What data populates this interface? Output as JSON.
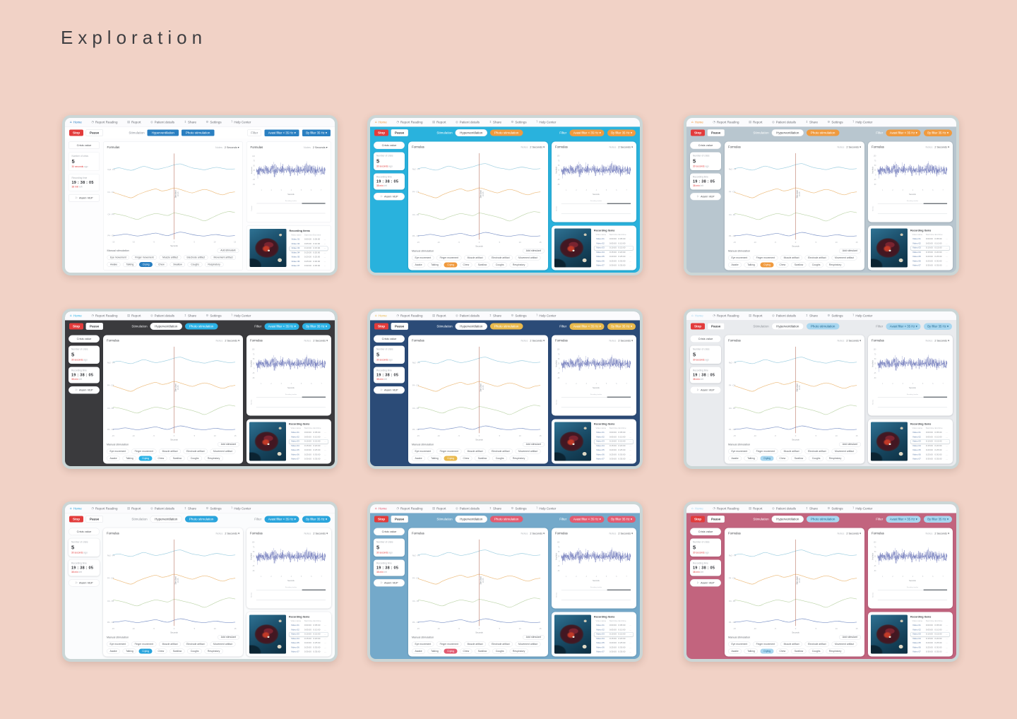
{
  "page": {
    "title": "Exploration",
    "background": "#f1d2c6"
  },
  "dashboard": {
    "navbar": {
      "items": [
        {
          "label": "Home",
          "icon": "home-icon",
          "glyph": "⌂"
        },
        {
          "label": "Report Reading",
          "icon": "report-reading-icon",
          "glyph": "◔"
        },
        {
          "label": "Report",
          "icon": "report-icon",
          "glyph": "▤"
        },
        {
          "label": "Patient details",
          "icon": "patient-icon",
          "glyph": "◎"
        },
        {
          "label": "Share",
          "icon": "share-icon",
          "glyph": "↥"
        },
        {
          "label": "Settings",
          "icon": "settings-icon",
          "glyph": "⚙"
        },
        {
          "label": "Help Center",
          "icon": "help-icon",
          "glyph": "?"
        }
      ]
    },
    "controls": {
      "stop": "Stop",
      "pause": "Pause",
      "stimulation_label": "Stimulation",
      "tabs": [
        "Hyperventilation",
        "Photo stimulation"
      ],
      "filter_label": "Filter",
      "filters": [
        {
          "label": "Avast filter < 35 Hz"
        },
        {
          "label": "By filter 35 Hz"
        }
      ],
      "caret": "▾"
    },
    "sidebar": {
      "crisis_button": "Crisis value",
      "crisis": {
        "label": "Number of crisis",
        "value": "5",
        "highlight": "30 seconds",
        "suffix": "ago"
      },
      "timer": {
        "label": "Recording time",
        "value": "19 : 38 : 05",
        "highlight": "38 min",
        "suffix": "left"
      },
      "alarm": {
        "label": "Alarm VEP",
        "glyph": "⚐"
      }
    },
    "main_chart": {
      "title": "Formulas",
      "notes_label": "Notes",
      "notes_value": "2 Seconds",
      "xlabel": "Seconds",
      "marker_label": "Stimulant",
      "marker_time": "19:35"
    },
    "manual": {
      "title": "Manual stimulation",
      "add_button": "Add stimulant",
      "row1": [
        "Eye movement",
        "Finger movement",
        "Muscle artifact",
        "Electrode artifact",
        "Movement artifact"
      ],
      "row2": [
        {
          "label": "Awake",
          "active": false
        },
        {
          "label": "Talking",
          "active": false
        },
        {
          "label": "Crying",
          "active": true
        },
        {
          "label": "Chew",
          "active": false
        },
        {
          "label": "Swallow",
          "active": false
        },
        {
          "label": "Coughs",
          "active": false
        },
        {
          "label": "Respiratory",
          "active": false
        }
      ]
    },
    "eeg_panel": {
      "title": "Formulas",
      "notes_label": "Notes",
      "notes_value": "2 Seconds",
      "ylabel": "Amplitude",
      "xlabel": "Seconds",
      "timeline_label": "Recording timeline",
      "scroll_label": "Timeline"
    },
    "recording": {
      "title": "Recording items",
      "headers": [
        "Video name",
        "Start time",
        "End time",
        ""
      ],
      "menu_glyph": "…",
      "selected_index": 2,
      "rows": [
        {
          "name": "Video 01",
          "start": "0:00:00",
          "end": "0:05:00"
        },
        {
          "name": "Video 02",
          "start": "0:05:00",
          "end": "0:10:00"
        },
        {
          "name": "Video 03",
          "start": "0:10:00",
          "end": "0:15:00"
        },
        {
          "name": "Video 04",
          "start": "0:15:00",
          "end": "0:20:00"
        },
        {
          "name": "Video 05",
          "start": "0:20:00",
          "end": "0:25:00"
        },
        {
          "name": "Video 06",
          "start": "0:25:00",
          "end": "0:30:00"
        },
        {
          "name": "Video 07",
          "start": "0:30:00",
          "end": "0:35:00"
        }
      ]
    }
  },
  "themes": [
    {
      "name": "light-flat",
      "flat": true,
      "bg": "#fdfdfe",
      "accent": "#2a7fc1",
      "accentText": "#ffffff",
      "barText": "#8a8f98"
    },
    {
      "name": "cyan",
      "flat": false,
      "bg": "#29b2dd",
      "accent": "#f09a3e",
      "accentText": "#ffffff",
      "barText": "#ffffff"
    },
    {
      "name": "slate-mist",
      "flat": false,
      "bg": "#b8c6cf",
      "accent": "#f09a3e",
      "accentText": "#ffffff",
      "barText": "#ffffff"
    },
    {
      "name": "charcoal",
      "flat": false,
      "bg": "#3a3a3d",
      "accent": "#2bb2e6",
      "accentText": "#ffffff",
      "barText": "#e8e8ea"
    },
    {
      "name": "navy",
      "flat": false,
      "bg": "#2b4b77",
      "accent": "#e9b94d",
      "accentText": "#ffffff",
      "barText": "#ffffff"
    },
    {
      "name": "porcelain",
      "flat": false,
      "bg": "#e9ebee",
      "accent": "#a9d7f0",
      "accentText": "#246a92",
      "barText": "#90949b"
    },
    {
      "name": "white-cyan",
      "flat": false,
      "bg": "#fbfcfd",
      "accent": "#29a4dc",
      "accentText": "#ffffff",
      "barText": "#90949b"
    },
    {
      "name": "steel-blue",
      "flat": false,
      "bg": "#74a9ca",
      "accent": "#e25a70",
      "accentText": "#ffffff",
      "barText": "#ffffff"
    },
    {
      "name": "rose",
      "flat": false,
      "bg": "#c2647e",
      "accent": "#a9d7f0",
      "accentText": "#246a92",
      "barText": "#ffffff"
    }
  ],
  "chart_data": [
    {
      "type": "line",
      "title": "Formulas",
      "xlabel": "Seconds",
      "x_ticks": [
        -15,
        -10,
        -5,
        0,
        5,
        10,
        15
      ],
      "marker": {
        "x": 0,
        "label": "Stimulant",
        "time": "19:35"
      },
      "series": [
        {
          "name": "Fp2 - F4",
          "color": "#8ec6dc",
          "offsets": [
            1,
            3,
            0,
            -2,
            2,
            6,
            3,
            0,
            2,
            5,
            9,
            11,
            7,
            3,
            1,
            -1,
            2,
            4,
            2,
            0,
            1
          ]
        },
        {
          "name": "F4 - C4",
          "color": "#eab066",
          "offsets": [
            -1,
            -5,
            -9,
            -12,
            -6,
            -1,
            3,
            6,
            2,
            4,
            8,
            5,
            1,
            -2,
            2,
            5,
            2,
            -3,
            -6,
            -2,
            0
          ]
        },
        {
          "name": "C4 - P4",
          "color": "#b5cf9e",
          "offsets": [
            2,
            0,
            -3,
            -7,
            -10,
            -5,
            -1,
            2,
            0,
            -2,
            3,
            1,
            -2,
            -5,
            -9,
            -13,
            -8,
            -2,
            3,
            6,
            4
          ]
        },
        {
          "name": "P4 - O2",
          "color": "#6b85c0",
          "offsets": [
            0,
            1,
            3,
            1,
            -1,
            1,
            3,
            5,
            2,
            0,
            4,
            7,
            5,
            2,
            0,
            -1,
            1,
            2,
            0,
            -1,
            0
          ]
        }
      ]
    },
    {
      "type": "line",
      "title": "Formulas",
      "xlabel": "Seconds",
      "ylabel": "Amplitude",
      "y_ticks": [
        100,
        75,
        50,
        25,
        0,
        -25,
        -50
      ],
      "x_ticks": [
        1,
        2,
        3,
        4,
        5,
        6,
        7
      ],
      "series": [
        {
          "name": "EEG",
          "color": "#2b3a9a",
          "amplitude": 38,
          "envelope": [
            0.45,
            0.55,
            0.5,
            0.42,
            0.5,
            0.6,
            0.52,
            0.4,
            0.46,
            0.68,
            0.88,
            0.62,
            0.46,
            0.4,
            0.5,
            0.56,
            0.44,
            0.4,
            0.58,
            0.78,
            0.55,
            0.44,
            0.4,
            0.5,
            0.6,
            0.5,
            0.44,
            0.55,
            0.75,
            0.98,
            0.7,
            0.52,
            0.56,
            0.6,
            0.5,
            0.46,
            0.56,
            0.66,
            0.56,
            0.5
          ]
        }
      ]
    }
  ]
}
